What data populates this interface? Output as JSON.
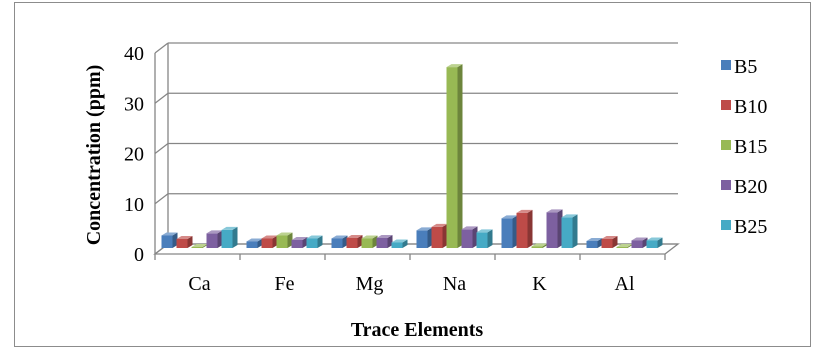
{
  "chart_data": {
    "type": "bar",
    "title": "",
    "xlabel": "Trace Elements",
    "ylabel": "Concentration (ppm)",
    "ylim": [
      0,
      40
    ],
    "yticks": [
      0,
      10,
      20,
      30,
      40
    ],
    "grid": true,
    "legend_position": "right",
    "categories": [
      "Ca",
      "Fe",
      "Mg",
      "Na",
      "K",
      "Al"
    ],
    "series": [
      {
        "name": "B5",
        "color": "#4a7ebb",
        "values": [
          2.5,
          1.3,
          1.9,
          3.5,
          5.9,
          1.4
        ]
      },
      {
        "name": "B10",
        "color": "#be4b48",
        "values": [
          1.8,
          1.9,
          2.0,
          4.2,
          7.0,
          1.8
        ]
      },
      {
        "name": "B15",
        "color": "#98b954",
        "values": [
          0.2,
          2.5,
          1.9,
          36.0,
          0.3,
          0.2
        ]
      },
      {
        "name": "B20",
        "color": "#7d60a0",
        "values": [
          2.9,
          1.6,
          2.0,
          3.7,
          7.1,
          1.5
        ]
      },
      {
        "name": "B25",
        "color": "#46aac5",
        "values": [
          3.6,
          1.9,
          1.1,
          3.1,
          6.1,
          1.5
        ]
      }
    ]
  }
}
